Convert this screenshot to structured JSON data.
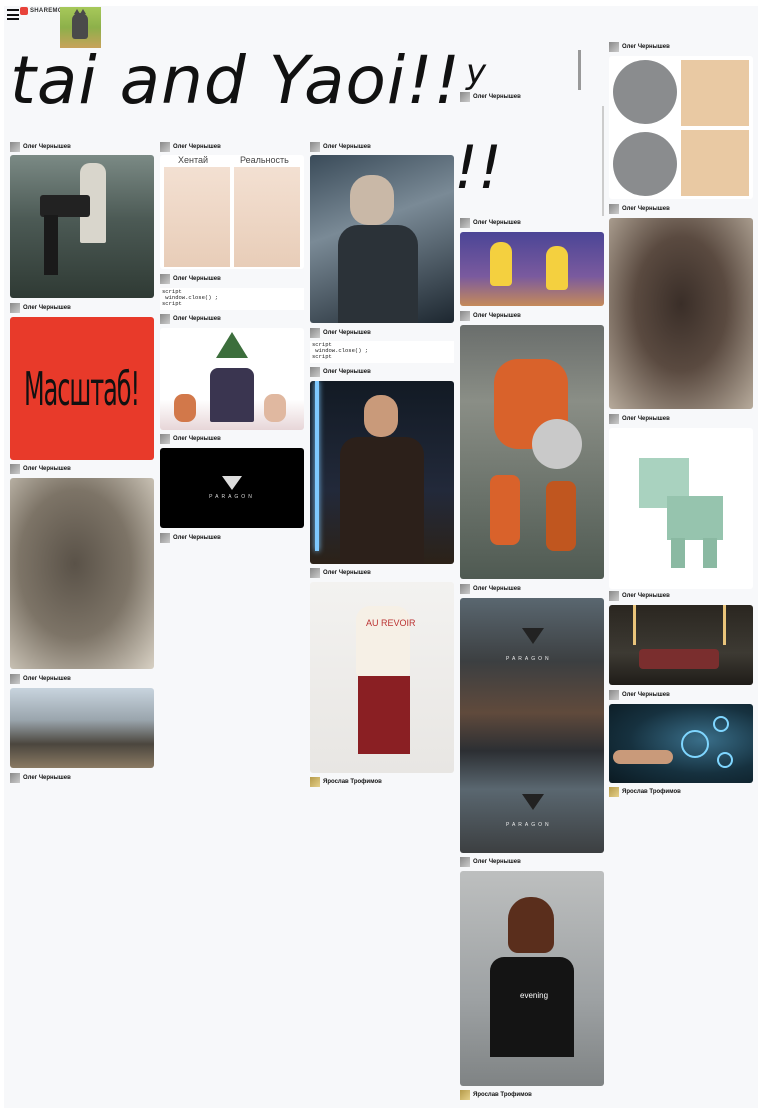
{
  "header": {
    "menu_icon": "hamburger-menu-icon",
    "logo_text": "SHAREMO",
    "avatar_icon": "cat-avatar-icon"
  },
  "banner": {
    "text": "tai and Yaoi!!"
  },
  "authors": {
    "oleg": "Олег Чернышев",
    "yaroslav": "Ярослав Трофимов"
  },
  "cards": {
    "hentai_left_label": "Хентай",
    "hentai_right_label": "Реальность",
    "mashtab_text": "Масштаб!",
    "paragon_text": "PARAGON",
    "code_text": "script\n window.close() ;\nscript",
    "sweater_text": "AU REVOIR",
    "shirt_text": "evening"
  }
}
